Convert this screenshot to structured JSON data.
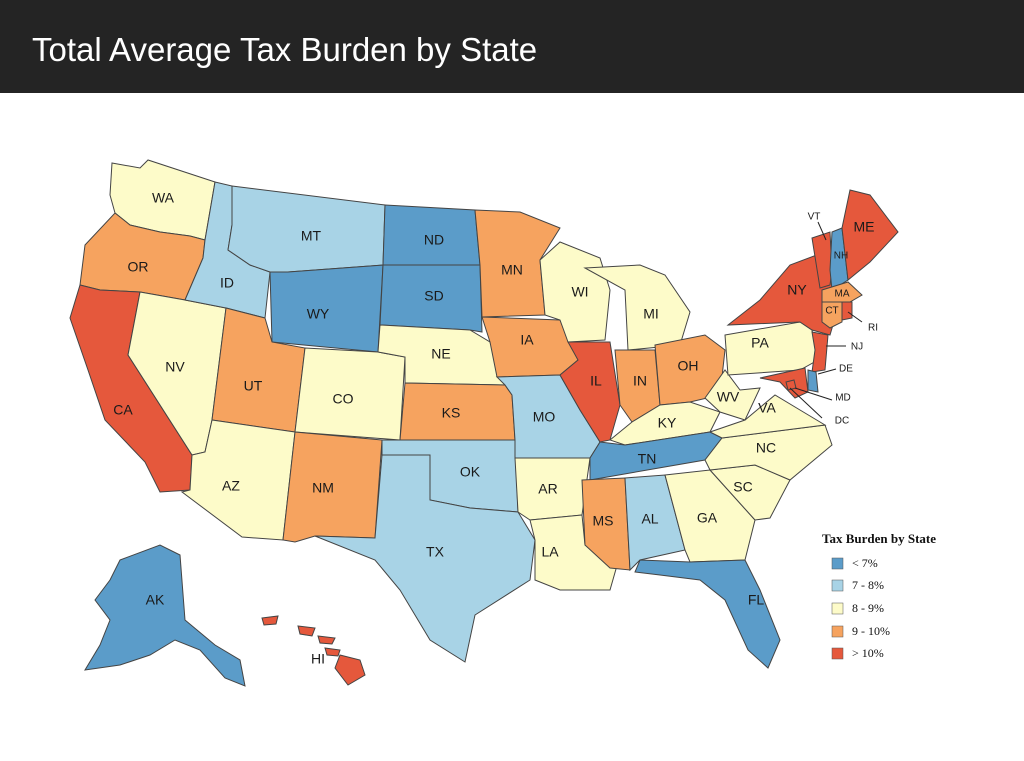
{
  "header": {
    "title": "Total Average Tax Burden by State"
  },
  "colors": {
    "lt7": "#5b9cc9",
    "7to8": "#a8d3e6",
    "8to9": "#fdfbc9",
    "9to10": "#f6a35f",
    "gt10": "#e5583c"
  },
  "states": [
    {
      "abbr": "WA",
      "category": "8to9"
    },
    {
      "abbr": "OR",
      "category": "9to10"
    },
    {
      "abbr": "CA",
      "category": "gt10"
    },
    {
      "abbr": "NV",
      "category": "8to9"
    },
    {
      "abbr": "ID",
      "category": "7to8"
    },
    {
      "abbr": "MT",
      "category": "7to8"
    },
    {
      "abbr": "WY",
      "category": "lt7"
    },
    {
      "abbr": "UT",
      "category": "9to10"
    },
    {
      "abbr": "AZ",
      "category": "8to9"
    },
    {
      "abbr": "CO",
      "category": "8to9"
    },
    {
      "abbr": "NM",
      "category": "9to10"
    },
    {
      "abbr": "ND",
      "category": "lt7"
    },
    {
      "abbr": "SD",
      "category": "lt7"
    },
    {
      "abbr": "NE",
      "category": "8to9"
    },
    {
      "abbr": "KS",
      "category": "9to10"
    },
    {
      "abbr": "OK",
      "category": "7to8"
    },
    {
      "abbr": "TX",
      "category": "7to8"
    },
    {
      "abbr": "MN",
      "category": "9to10"
    },
    {
      "abbr": "IA",
      "category": "9to10"
    },
    {
      "abbr": "MO",
      "category": "7to8"
    },
    {
      "abbr": "AR",
      "category": "8to9"
    },
    {
      "abbr": "LA",
      "category": "8to9"
    },
    {
      "abbr": "WI",
      "category": "8to9"
    },
    {
      "abbr": "IL",
      "category": "gt10"
    },
    {
      "abbr": "MI",
      "category": "8to9"
    },
    {
      "abbr": "IN",
      "category": "9to10"
    },
    {
      "abbr": "OH",
      "category": "9to10"
    },
    {
      "abbr": "KY",
      "category": "8to9"
    },
    {
      "abbr": "TN",
      "category": "lt7"
    },
    {
      "abbr": "MS",
      "category": "9to10"
    },
    {
      "abbr": "AL",
      "category": "7to8"
    },
    {
      "abbr": "GA",
      "category": "8to9"
    },
    {
      "abbr": "FL",
      "category": "lt7"
    },
    {
      "abbr": "SC",
      "category": "8to9"
    },
    {
      "abbr": "NC",
      "category": "8to9"
    },
    {
      "abbr": "VA",
      "category": "8to9"
    },
    {
      "abbr": "WV",
      "category": "8to9"
    },
    {
      "abbr": "PA",
      "category": "8to9"
    },
    {
      "abbr": "NY",
      "category": "gt10"
    },
    {
      "abbr": "VT",
      "category": "gt10"
    },
    {
      "abbr": "NH",
      "category": "lt7"
    },
    {
      "abbr": "ME",
      "category": "gt10"
    },
    {
      "abbr": "MA",
      "category": "9to10"
    },
    {
      "abbr": "CT",
      "category": "9to10"
    },
    {
      "abbr": "RI",
      "category": "gt10"
    },
    {
      "abbr": "NJ",
      "category": "gt10"
    },
    {
      "abbr": "DE",
      "category": "lt7"
    },
    {
      "abbr": "MD",
      "category": "gt10"
    },
    {
      "abbr": "DC",
      "category": "gt10"
    },
    {
      "abbr": "AK",
      "category": "lt7"
    },
    {
      "abbr": "HI",
      "category": "gt10"
    }
  ],
  "legend": {
    "title": "Tax Burden by State",
    "items": [
      {
        "label": "< 7%",
        "category": "lt7"
      },
      {
        "label": "7 - 8%",
        "category": "7to8"
      },
      {
        "label": "8 - 9%",
        "category": "8to9"
      },
      {
        "label": "9 - 10%",
        "category": "9to10"
      },
      {
        "label": "> 10%",
        "category": "gt10"
      }
    ]
  }
}
